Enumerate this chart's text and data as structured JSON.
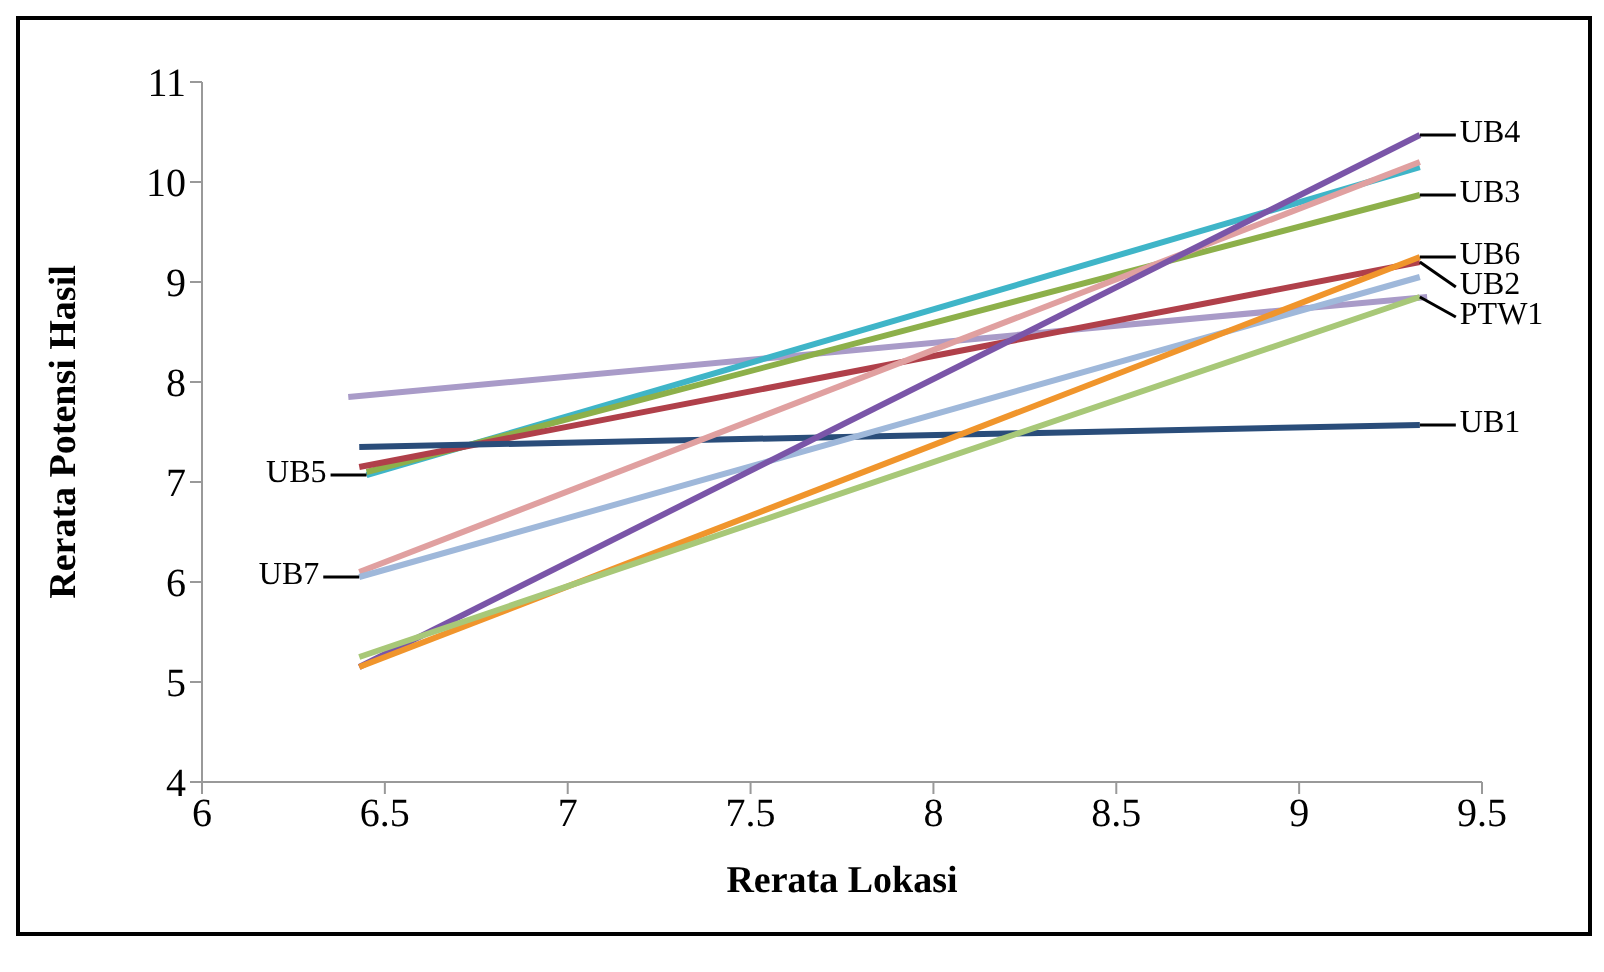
{
  "chart_data": {
    "type": "line",
    "xlabel": "Rerata Lokasi",
    "ylabel": "Rerata Potensi Hasil",
    "xlim": [
      6,
      9.5
    ],
    "xticks": [
      6,
      6.5,
      7,
      7.5,
      8,
      8.5,
      9,
      9.5
    ],
    "ylim": [
      4,
      11
    ],
    "yticks": [
      4,
      5,
      6,
      7,
      8,
      9,
      10,
      11
    ],
    "grid": false,
    "marker": "none",
    "line_style": "solid",
    "series": [
      {
        "color": "#a99bc8",
        "x": [
          9.35,
          6.4
        ],
        "values": [
          8.85,
          7.85
        ]
      },
      {
        "name": "UB5",
        "color": "#3fb5c8",
        "x": [
          9.33,
          6.45
        ],
        "values": [
          10.15,
          7.07
        ]
      },
      {
        "name": "UB3",
        "color": "#8db04a",
        "x": [
          6.45,
          9.33
        ],
        "values": [
          7.1,
          9.87
        ]
      },
      {
        "name": "UB2",
        "color": "#b0404a",
        "x": [
          6.43,
          9.33
        ],
        "values": [
          7.15,
          9.2
        ]
      },
      {
        "name": "UB1",
        "color": "#2a4d7a",
        "x": [
          6.43,
          9.33
        ],
        "values": [
          7.35,
          7.57
        ]
      },
      {
        "color": "#e0a0a0",
        "x": [
          6.43,
          9.33
        ],
        "values": [
          6.1,
          10.2
        ]
      },
      {
        "name": "UB7",
        "color": "#9fb8da",
        "x": [
          9.33,
          6.43
        ],
        "values": [
          9.05,
          6.05
        ]
      },
      {
        "name": "UB4",
        "color": "#7a55a8",
        "x": [
          6.43,
          9.33
        ],
        "values": [
          5.15,
          10.47
        ]
      },
      {
        "name": "UB6",
        "color": "#f0952c",
        "x": [
          6.43,
          9.33
        ],
        "values": [
          5.15,
          9.25
        ]
      },
      {
        "name": "PTW1",
        "color": "#a8c878",
        "x": [
          6.43,
          9.33
        ],
        "values": [
          5.25,
          8.85
        ]
      }
    ]
  }
}
